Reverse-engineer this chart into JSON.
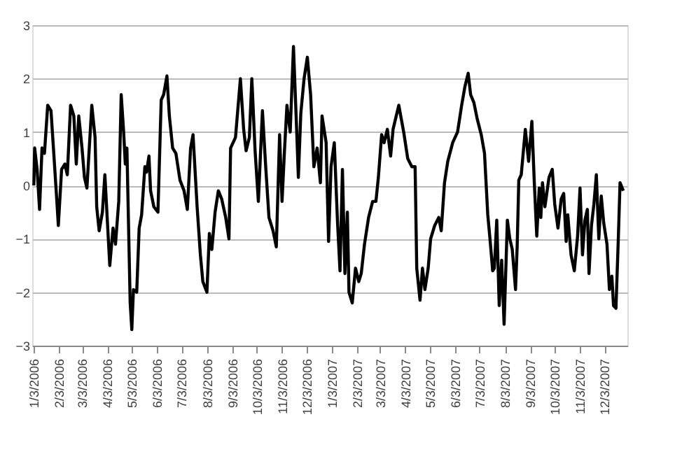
{
  "chart_data": {
    "type": "line",
    "x": [
      "2006-01-03",
      "2006-01-04",
      "2006-01-07",
      "2006-01-10",
      "2006-01-13",
      "2006-01-16",
      "2006-01-20",
      "2006-01-24",
      "2006-01-27",
      "2006-01-31",
      "2006-02-02",
      "2006-02-06",
      "2006-02-10",
      "2006-02-13",
      "2006-02-17",
      "2006-02-21",
      "2006-02-24",
      "2006-02-27",
      "2006-03-03",
      "2006-03-06",
      "2006-03-09",
      "2006-03-15",
      "2006-03-19",
      "2006-03-21",
      "2006-03-24",
      "2006-03-28",
      "2006-03-31",
      "2006-04-06",
      "2006-04-10",
      "2006-04-13",
      "2006-04-17",
      "2006-04-20",
      "2006-04-23",
      "2006-04-25",
      "2006-04-27",
      "2006-05-01",
      "2006-05-03",
      "2006-05-05",
      "2006-05-09",
      "2006-05-12",
      "2006-05-15",
      "2006-05-19",
      "2006-05-21",
      "2006-05-24",
      "2006-05-26",
      "2006-05-30",
      "2006-06-04",
      "2006-06-08",
      "2006-06-11",
      "2006-06-15",
      "2006-06-18",
      "2006-06-22",
      "2006-06-26",
      "2006-07-01",
      "2006-07-06",
      "2006-07-10",
      "2006-07-14",
      "2006-07-17",
      "2006-07-22",
      "2006-07-26",
      "2006-07-29",
      "2006-08-03",
      "2006-08-06",
      "2006-08-09",
      "2006-08-13",
      "2006-08-17",
      "2006-08-21",
      "2006-08-26",
      "2006-08-30",
      "2006-09-01",
      "2006-09-07",
      "2006-09-13",
      "2006-09-17",
      "2006-09-20",
      "2006-09-24",
      "2006-09-27",
      "2006-10-01",
      "2006-10-05",
      "2006-10-10",
      "2006-10-14",
      "2006-10-18",
      "2006-10-23",
      "2006-10-27",
      "2006-10-31",
      "2006-11-03",
      "2006-11-06",
      "2006-11-09",
      "2006-11-13",
      "2006-11-17",
      "2006-11-21",
      "2006-11-23",
      "2006-11-26",
      "2006-11-30",
      "2006-12-04",
      "2006-12-08",
      "2006-12-12",
      "2006-12-16",
      "2006-12-20",
      "2006-12-22",
      "2006-12-27",
      "2006-12-30",
      "2007-01-02",
      "2007-01-06",
      "2007-01-10",
      "2007-01-13",
      "2007-01-16",
      "2007-01-19",
      "2007-01-22",
      "2007-01-24",
      "2007-01-28",
      "2007-02-01",
      "2007-02-05",
      "2007-02-08",
      "2007-02-12",
      "2007-02-17",
      "2007-02-22",
      "2007-02-26",
      "2007-03-01",
      "2007-03-05",
      "2007-03-08",
      "2007-03-12",
      "2007-03-16",
      "2007-03-19",
      "2007-03-26",
      "2007-04-01",
      "2007-04-06",
      "2007-04-11",
      "2007-04-15",
      "2007-04-17",
      "2007-04-21",
      "2007-04-24",
      "2007-04-27",
      "2007-05-01",
      "2007-05-04",
      "2007-05-09",
      "2007-05-14",
      "2007-05-17",
      "2007-05-21",
      "2007-05-25",
      "2007-05-31",
      "2007-06-06",
      "2007-06-11",
      "2007-06-15",
      "2007-06-19",
      "2007-06-22",
      "2007-06-26",
      "2007-06-30",
      "2007-07-05",
      "2007-07-09",
      "2007-07-13",
      "2007-07-16",
      "2007-07-19",
      "2007-07-21",
      "2007-07-24",
      "2007-07-27",
      "2007-07-30",
      "2007-08-02",
      "2007-08-06",
      "2007-08-09",
      "2007-08-12",
      "2007-08-16",
      "2007-08-18",
      "2007-08-20",
      "2007-08-23",
      "2007-08-28",
      "2007-09-01",
      "2007-09-05",
      "2007-09-08",
      "2007-09-11",
      "2007-09-14",
      "2007-09-16",
      "2007-09-18",
      "2007-09-21",
      "2007-09-26",
      "2007-09-30",
      "2007-10-03",
      "2007-10-07",
      "2007-10-11",
      "2007-10-14",
      "2007-10-17",
      "2007-10-19",
      "2007-10-23",
      "2007-10-27",
      "2007-10-31",
      "2007-11-03",
      "2007-11-06",
      "2007-11-09",
      "2007-11-12",
      "2007-11-14",
      "2007-11-17",
      "2007-11-20",
      "2007-11-23",
      "2007-11-26",
      "2007-11-29",
      "2007-12-02",
      "2007-12-06",
      "2007-12-09",
      "2007-12-12",
      "2007-12-14",
      "2007-12-17",
      "2007-12-20",
      "2007-12-22",
      "2007-12-26"
    ],
    "series": [
      {
        "color": "#000000",
        "values": [
          0,
          0.7,
          0.3,
          -0.45,
          0.7,
          0.6,
          1.5,
          1.4,
          0.7,
          -0.25,
          -0.75,
          0.3,
          0.4,
          0.2,
          1.5,
          1.3,
          0.4,
          1.3,
          0.7,
          0.15,
          -0.05,
          1.5,
          0.9,
          -0.4,
          -0.85,
          -0.5,
          0.2,
          -1.5,
          -0.8,
          -1.1,
          -0.3,
          1.7,
          1.0,
          0.4,
          0.7,
          -2.2,
          -2.7,
          -1.95,
          -2.0,
          -0.8,
          -0.55,
          0.35,
          0.25,
          0.55,
          -0.1,
          -0.4,
          -0.5,
          1.6,
          1.7,
          2.05,
          1.3,
          0.7,
          0.6,
          0.1,
          -0.1,
          -0.45,
          0.7,
          0.95,
          -0.4,
          -1.3,
          -1.8,
          -2.0,
          -0.9,
          -1.2,
          -0.5,
          -0.1,
          -0.25,
          -0.6,
          -1.0,
          0.7,
          0.9,
          2.0,
          1.05,
          0.65,
          0.9,
          2.0,
          0.65,
          -0.3,
          1.4,
          0.35,
          -0.6,
          -0.85,
          -1.15,
          0.95,
          -0.3,
          0.65,
          1.5,
          1.0,
          2.6,
          1.0,
          0.15,
          1.35,
          2.0,
          2.4,
          1.7,
          0.35,
          0.7,
          0.05,
          1.3,
          0.8,
          -1.05,
          0.35,
          0.8,
          -0.7,
          -1.6,
          0.3,
          -1.65,
          -0.5,
          -2.0,
          -2.2,
          -1.55,
          -1.8,
          -1.65,
          -1.1,
          -0.6,
          -0.3,
          -0.3,
          0.15,
          0.95,
          0.8,
          1.05,
          0.55,
          1.05,
          1.5,
          1.0,
          0.5,
          0.35,
          0.35,
          -1.55,
          -2.15,
          -1.55,
          -1.95,
          -1.55,
          -1.0,
          -0.75,
          -0.6,
          -0.85,
          0.05,
          0.45,
          0.8,
          1.0,
          1.5,
          1.85,
          2.1,
          1.7,
          1.55,
          1.25,
          0.95,
          0.6,
          -0.55,
          -1.05,
          -1.6,
          -1.55,
          -0.65,
          -2.25,
          -1.4,
          -2.6,
          -0.65,
          -1.0,
          -1.2,
          -1.95,
          -1.15,
          0.1,
          0.2,
          1.05,
          0.45,
          1.2,
          0.05,
          -0.95,
          -0.05,
          -0.6,
          0.05,
          -0.4,
          0.15,
          0.3,
          -0.35,
          -0.8,
          -0.25,
          -0.15,
          -1.05,
          -0.55,
          -1.3,
          -1.6,
          -0.95,
          -0.05,
          -1.3,
          -0.65,
          -0.45,
          -1.65,
          -0.75,
          -0.35,
          0.2,
          -1.0,
          -0.2,
          -0.7,
          -1.1,
          -1.95,
          -1.7,
          -2.25,
          -2.3,
          -0.95,
          0.05,
          -0.1
        ]
      }
    ],
    "xlim": [
      "2006-01-01",
      "2007-12-31"
    ],
    "xticks": [
      {
        "value": "2006-01-03",
        "label": "1/3/2006"
      },
      {
        "value": "2006-02-03",
        "label": "2/3/2006"
      },
      {
        "value": "2006-03-03",
        "label": "3/3/2006"
      },
      {
        "value": "2006-04-03",
        "label": "4/3/2006"
      },
      {
        "value": "2006-05-03",
        "label": "5/3/2006"
      },
      {
        "value": "2006-06-03",
        "label": "6/3/2006"
      },
      {
        "value": "2006-07-03",
        "label": "7/3/2006"
      },
      {
        "value": "2006-08-03",
        "label": "8/3/2006"
      },
      {
        "value": "2006-09-03",
        "label": "9/3/2006"
      },
      {
        "value": "2006-10-03",
        "label": "10/3/2006"
      },
      {
        "value": "2006-11-03",
        "label": "11/3/2006"
      },
      {
        "value": "2006-12-03",
        "label": "12/3/2006"
      },
      {
        "value": "2007-01-03",
        "label": "1/3/2007"
      },
      {
        "value": "2007-02-03",
        "label": "2/3/2007"
      },
      {
        "value": "2007-03-03",
        "label": "3/3/2007"
      },
      {
        "value": "2007-04-03",
        "label": "4/3/2007"
      },
      {
        "value": "2007-05-03",
        "label": "5/3/2007"
      },
      {
        "value": "2007-06-03",
        "label": "6/3/2007"
      },
      {
        "value": "2007-07-03",
        "label": "7/3/2007"
      },
      {
        "value": "2007-08-03",
        "label": "8/3/2007"
      },
      {
        "value": "2007-09-03",
        "label": "9/3/2007"
      },
      {
        "value": "2007-10-03",
        "label": "10/3/2007"
      },
      {
        "value": "2007-11-03",
        "label": "11/3/2007"
      },
      {
        "value": "2007-12-03",
        "label": "12/3/2007"
      }
    ],
    "ylim": [
      -3,
      3
    ],
    "yticks": [
      -3,
      -2,
      -1,
      0,
      1,
      2,
      3
    ],
    "grid": "y",
    "line_style": "solid",
    "marker": "none"
  }
}
